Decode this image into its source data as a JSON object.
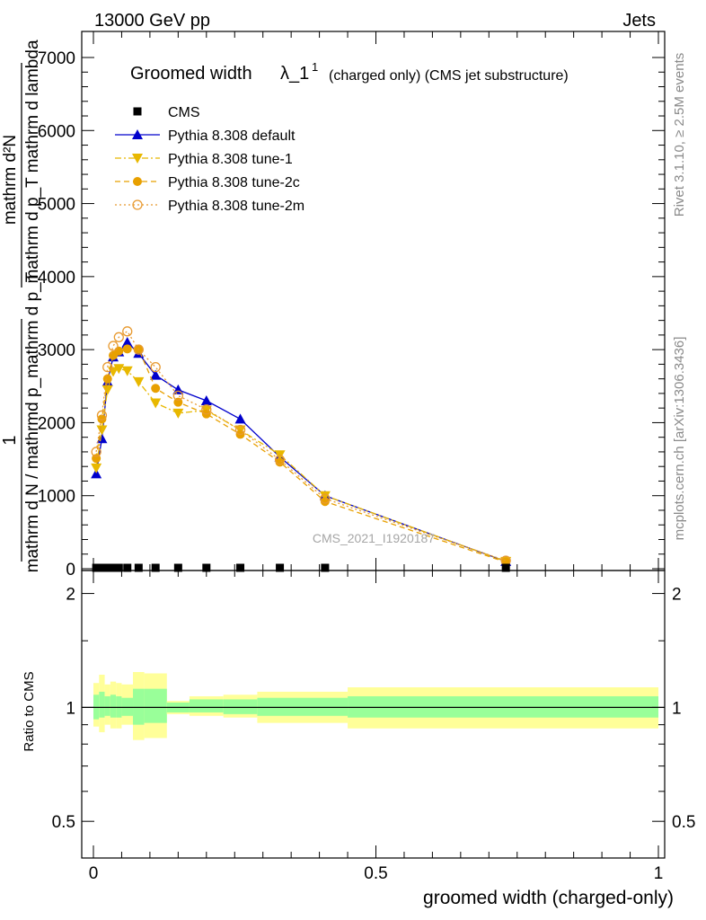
{
  "header": {
    "left": "13000 GeV pp",
    "right": "Jets"
  },
  "side_text": {
    "rivet": "Rivet 3.1.10, ≥ 2.5M events",
    "mcplots": "mcplots.cern.ch [arXiv:1306.3436]"
  },
  "watermark": "CMS_2021_I1920187",
  "chart_data": [
    {
      "type": "line",
      "title_main": "Groomed width",
      "title_lambda": "λ_1",
      "title_sup": "1",
      "title_suffix": "(charged only) (CMS jet substructure)",
      "ylabel_parts": {
        "one": "1",
        "denom": "mathrm d N / mathrmd p_mathrm d p_T",
        "num": "mathrm d²N",
        "denom2": "mathrm d p_T mathrm d lambda"
      },
      "xlim": [
        0,
        1
      ],
      "ylim": [
        0,
        7000
      ],
      "yticks": [
        0,
        1000,
        2000,
        3000,
        4000,
        5000,
        6000,
        7000
      ],
      "ytick_labels": [
        "0",
        "1000",
        "2000",
        "3000",
        "4000",
        "5000",
        "6000",
        "7000"
      ],
      "legend_position": "top-left",
      "series": [
        {
          "name": "CMS",
          "color": "#000000",
          "style": "data",
          "x": [
            0.005,
            0.015,
            0.025,
            0.035,
            0.045,
            0.06,
            0.08,
            0.11,
            0.15,
            0.2,
            0.26,
            0.33,
            0.41,
            0.73
          ],
          "values": [
            20,
            20,
            20,
            20,
            20,
            20,
            20,
            20,
            20,
            20,
            20,
            20,
            20,
            20
          ]
        },
        {
          "name": "Pythia 8.308 default",
          "color": "#0000cc",
          "style": "solid",
          "marker": "triangle-up",
          "x": [
            0.005,
            0.015,
            0.025,
            0.035,
            0.045,
            0.06,
            0.08,
            0.11,
            0.15,
            0.2,
            0.26,
            0.33,
            0.41,
            0.73
          ],
          "values": [
            1300,
            1780,
            2560,
            2900,
            2970,
            3100,
            2950,
            2650,
            2450,
            2300,
            2050,
            1530,
            1000,
            100
          ]
        },
        {
          "name": "Pythia 8.308 tune-1",
          "color": "#e8b800",
          "style": "dashdot",
          "marker": "triangle-down",
          "x": [
            0.005,
            0.015,
            0.025,
            0.035,
            0.045,
            0.06,
            0.08,
            0.11,
            0.15,
            0.2,
            0.26,
            0.33,
            0.41,
            0.73
          ],
          "values": [
            1380,
            1900,
            2450,
            2700,
            2740,
            2710,
            2560,
            2270,
            2130,
            2170,
            1900,
            1560,
            1000,
            100
          ]
        },
        {
          "name": "Pythia 8.308 tune-2c",
          "color": "#e8a000",
          "style": "dashed",
          "marker": "circle",
          "x": [
            0.005,
            0.015,
            0.025,
            0.035,
            0.045,
            0.06,
            0.08,
            0.11,
            0.15,
            0.2,
            0.26,
            0.33,
            0.41,
            0.73
          ],
          "values": [
            1510,
            2050,
            2600,
            2920,
            2980,
            3010,
            3010,
            2470,
            2280,
            2120,
            1840,
            1460,
            920,
            90
          ]
        },
        {
          "name": "Pythia 8.308 tune-2m",
          "color": "#e89a30",
          "style": "dotted",
          "marker": "circle-open",
          "x": [
            0.005,
            0.015,
            0.025,
            0.035,
            0.045,
            0.06,
            0.08,
            0.11,
            0.15,
            0.2,
            0.26,
            0.33,
            0.41,
            0.73
          ],
          "values": [
            1600,
            2100,
            2760,
            3050,
            3170,
            3250,
            3000,
            2760,
            2370,
            2180,
            1900,
            1490,
            960,
            110
          ]
        }
      ]
    },
    {
      "type": "area",
      "ylabel": "Ratio to CMS",
      "xlabel": "groomed width (charged-only)",
      "xlim": [
        0,
        1
      ],
      "xticks": [
        0,
        0.5,
        1
      ],
      "xtick_labels": [
        "0",
        "0.5",
        "1"
      ],
      "ylim": [
        0.4,
        2.3
      ],
      "ylog": true,
      "yticks": [
        0.5,
        1,
        2
      ],
      "ytick_labels": [
        "0.5",
        "1",
        "2"
      ],
      "ratio_line": 1,
      "bins": [
        {
          "x0": 0.0,
          "x1": 0.01,
          "stat_lo": 0.93,
          "stat_hi": 1.08,
          "tot_lo": 0.89,
          "tot_hi": 1.16
        },
        {
          "x0": 0.01,
          "x1": 0.02,
          "stat_lo": 0.94,
          "stat_hi": 1.1,
          "tot_lo": 0.86,
          "tot_hi": 1.22
        },
        {
          "x0": 0.02,
          "x1": 0.03,
          "stat_lo": 0.95,
          "stat_hi": 1.07,
          "tot_lo": 0.9,
          "tot_hi": 1.15
        },
        {
          "x0": 0.03,
          "x1": 0.04,
          "stat_lo": 0.94,
          "stat_hi": 1.08,
          "tot_lo": 0.88,
          "tot_hi": 1.17
        },
        {
          "x0": 0.04,
          "x1": 0.05,
          "stat_lo": 0.94,
          "stat_hi": 1.07,
          "tot_lo": 0.88,
          "tot_hi": 1.16
        },
        {
          "x0": 0.05,
          "x1": 0.07,
          "stat_lo": 0.95,
          "stat_hi": 1.06,
          "tot_lo": 0.9,
          "tot_hi": 1.15
        },
        {
          "x0": 0.07,
          "x1": 0.09,
          "stat_lo": 0.9,
          "stat_hi": 1.12,
          "tot_lo": 0.82,
          "tot_hi": 1.24
        },
        {
          "x0": 0.09,
          "x1": 0.13,
          "stat_lo": 0.91,
          "stat_hi": 1.12,
          "tot_lo": 0.83,
          "tot_hi": 1.23
        },
        {
          "x0": 0.13,
          "x1": 0.17,
          "stat_lo": 0.97,
          "stat_hi": 1.03,
          "tot_lo": 0.96,
          "tot_hi": 1.04
        },
        {
          "x0": 0.17,
          "x1": 0.23,
          "stat_lo": 0.97,
          "stat_hi": 1.05,
          "tot_lo": 0.95,
          "tot_hi": 1.07
        },
        {
          "x0": 0.23,
          "x1": 0.29,
          "stat_lo": 0.96,
          "stat_hi": 1.05,
          "tot_lo": 0.94,
          "tot_hi": 1.08
        },
        {
          "x0": 0.29,
          "x1": 0.45,
          "stat_lo": 0.95,
          "stat_hi": 1.06,
          "tot_lo": 0.91,
          "tot_hi": 1.1
        },
        {
          "x0": 0.45,
          "x1": 1.0,
          "stat_lo": 0.94,
          "stat_hi": 1.07,
          "tot_lo": 0.88,
          "tot_hi": 1.13
        }
      ]
    }
  ]
}
